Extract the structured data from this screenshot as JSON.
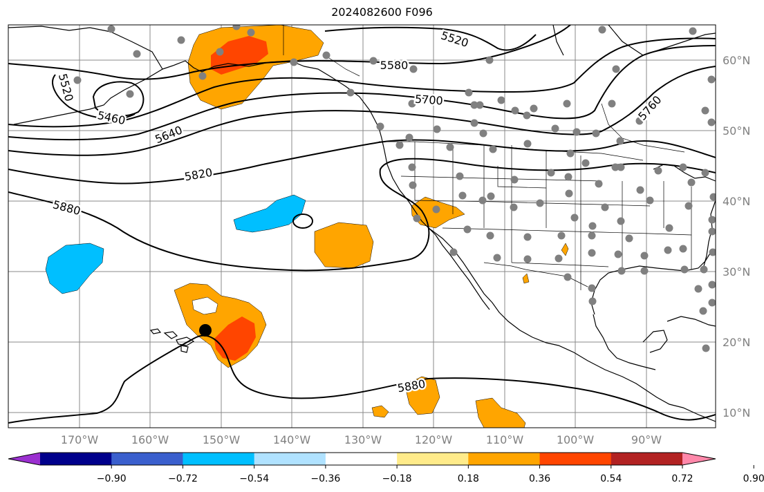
{
  "title": "2024082600 F096",
  "map": {
    "lon_ticks": [
      "170°W",
      "160°W",
      "150°W",
      "140°W",
      "130°W",
      "120°W",
      "110°W",
      "100°W",
      "90°W"
    ],
    "lat_ticks": [
      "60°N",
      "50°N",
      "40°N",
      "30°N",
      "20°N",
      "10°N"
    ],
    "contour_labels": [
      "5520",
      "5460",
      "5640",
      "5820",
      "5880",
      "5580",
      "5700",
      "5520",
      "5760",
      "5880"
    ]
  },
  "colorbar": {
    "ticks": [
      "−0.90",
      "−0.72",
      "−0.54",
      "−0.36",
      "−0.18",
      "0.18",
      "0.36",
      "0.54",
      "0.72",
      "0.90"
    ],
    "colors": [
      "#9b30d0",
      "#00008b",
      "#3a5fcd",
      "#00bfff",
      "#b0e2ff",
      "#ffffff",
      "#ffeb8a",
      "#ffa500",
      "#ff4500",
      "#b22222",
      "#ff88aa"
    ]
  },
  "colors": {
    "positive_light": "#ffa500",
    "positive_strong": "#ff4500",
    "negative": "#00bfff",
    "station": "#808080"
  }
}
